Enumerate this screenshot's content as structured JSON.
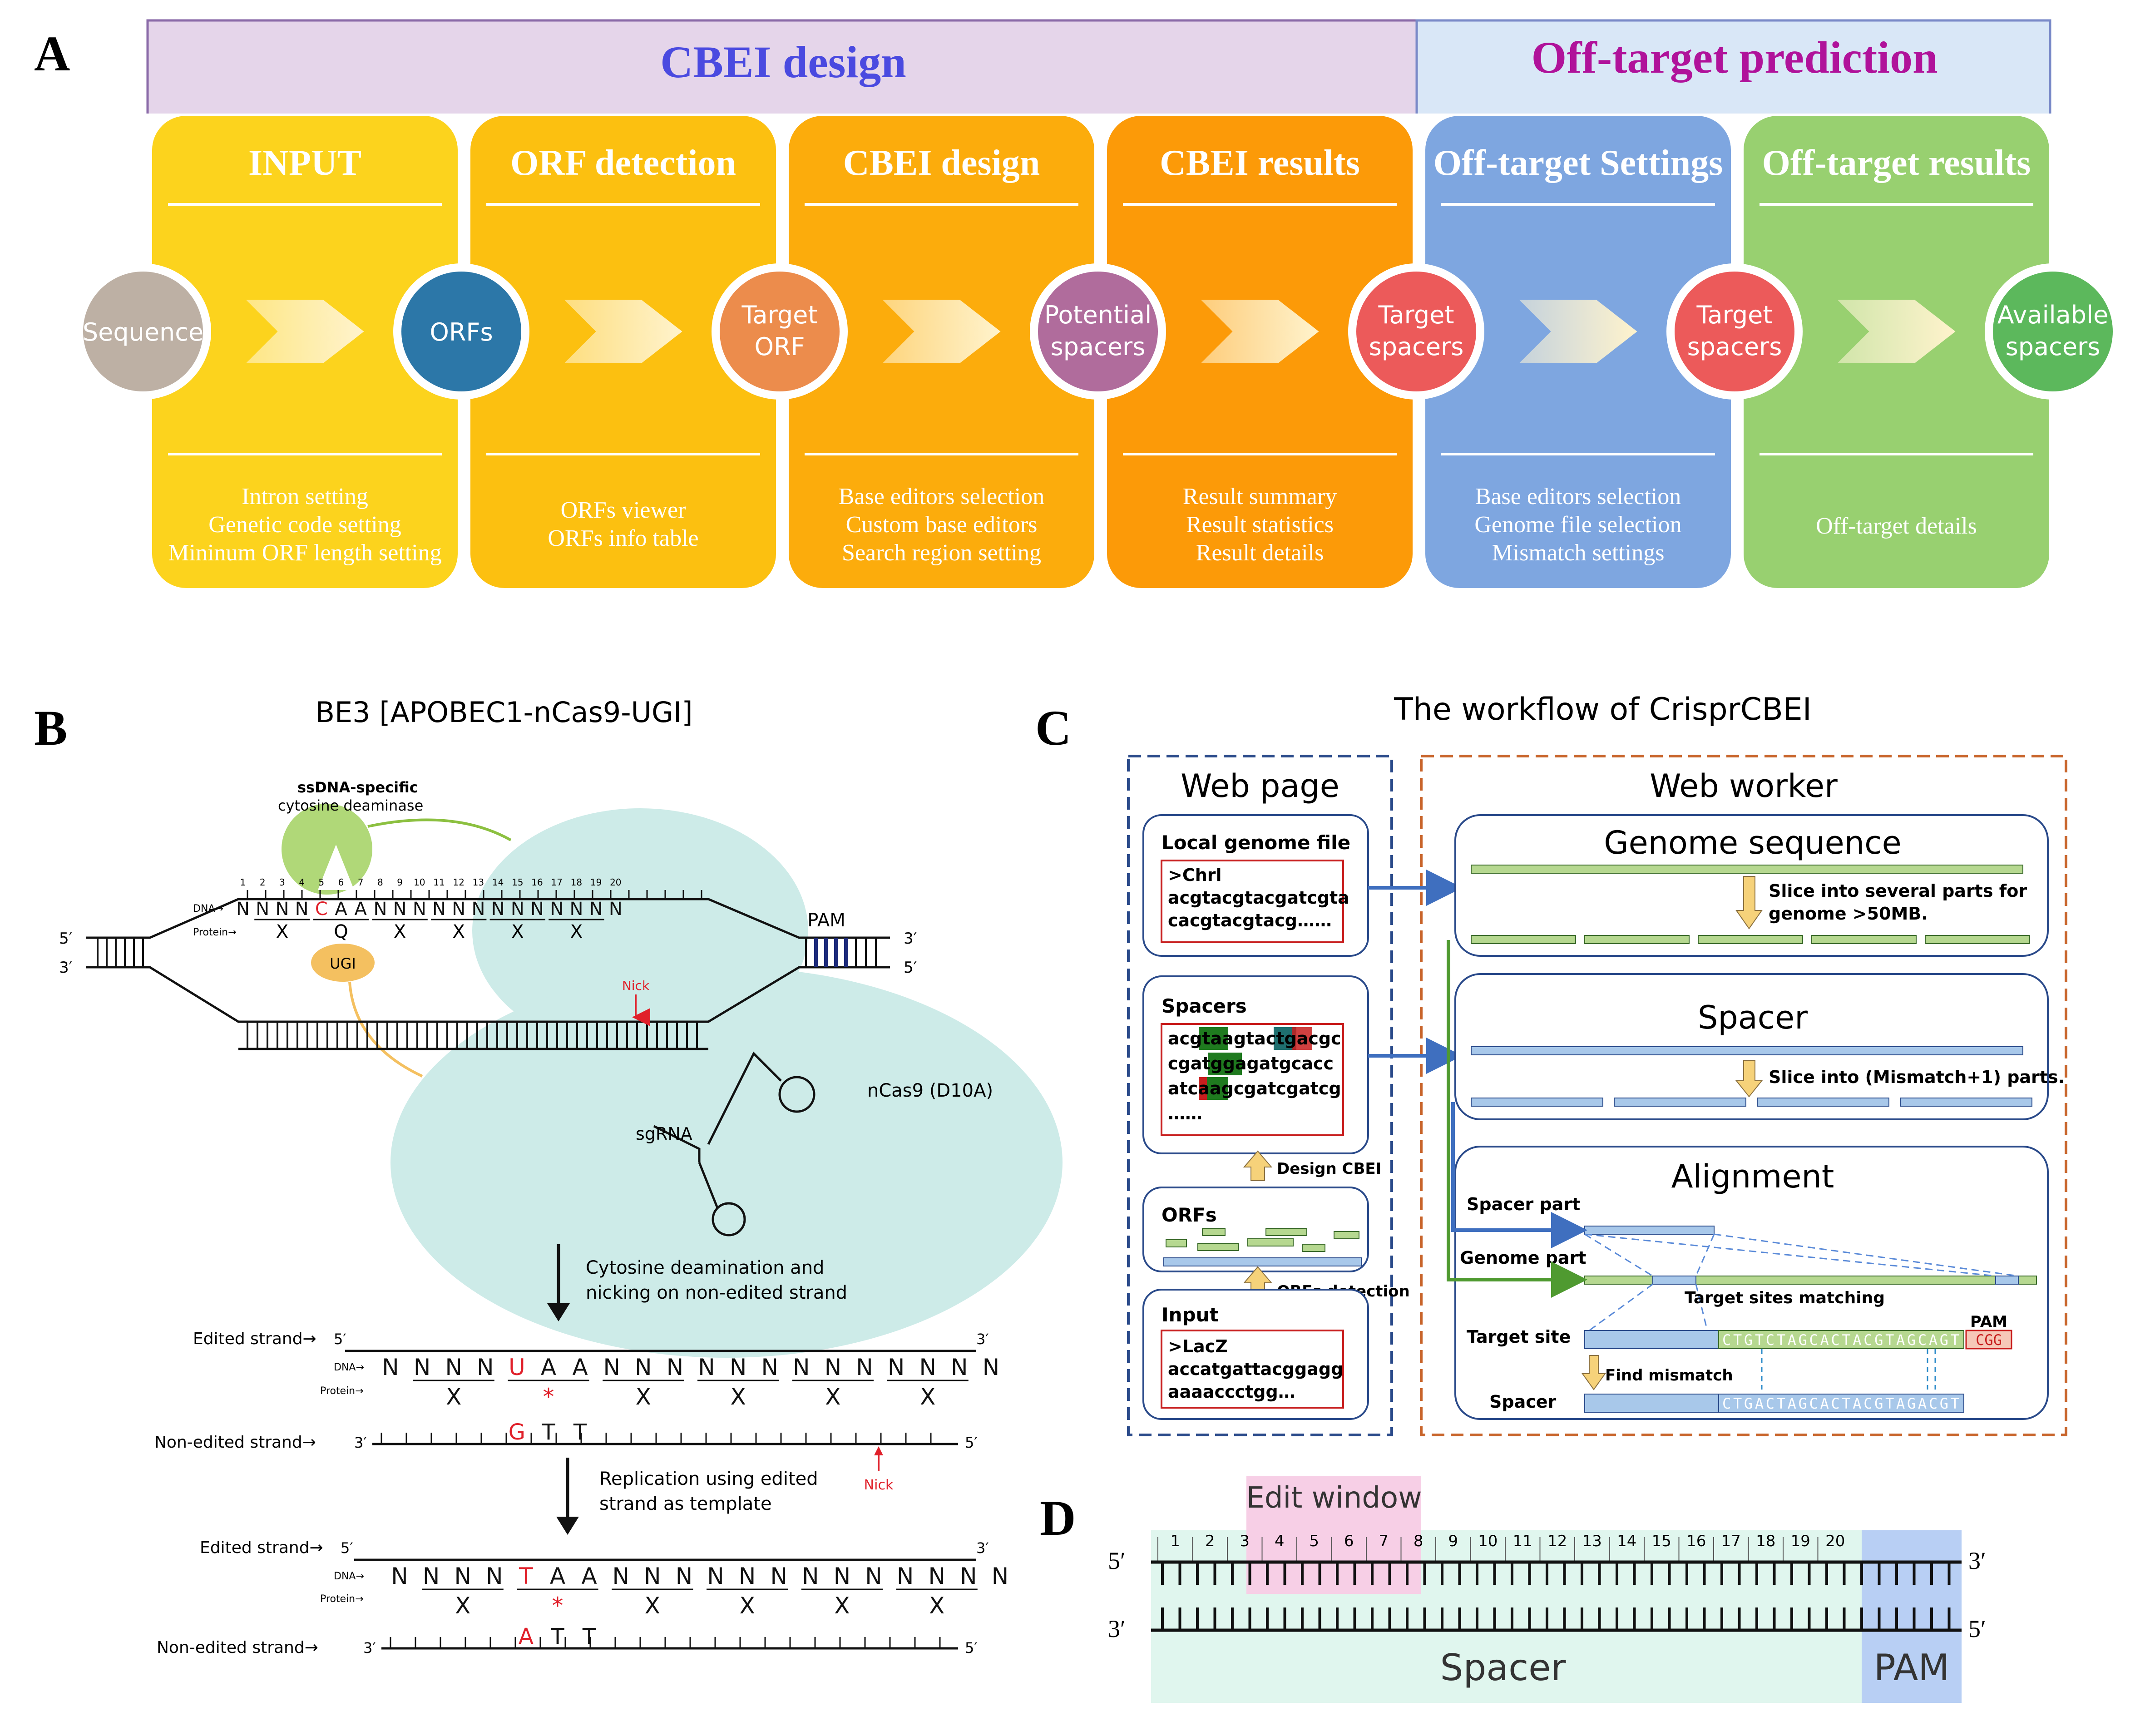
{
  "panel_a": {
    "letter": "A",
    "header_cbei": "CBEI design",
    "header_offtarget": "Off-target prediction",
    "colors": {
      "cbei_header_bg": "#e5d5ea",
      "off_header_bg": "#d9e7f7",
      "cbei_header_text": "#4a4ae0",
      "off_header_text": "#b0129a"
    },
    "columns": [
      {
        "title": "INPUT",
        "color": "#fcd31d",
        "lines": [
          "Intron setting",
          "Genetic code setting",
          "Mininum ORF length setting"
        ]
      },
      {
        "title": "ORF detection",
        "color": "#fcc010",
        "lines": [
          "ORFs viewer",
          "ORFs info table"
        ]
      },
      {
        "title": "CBEI design",
        "color": "#fcac0c",
        "lines": [
          "Base editors selection",
          "Custom base editors",
          "Search region setting"
        ]
      },
      {
        "title": "CBEI results",
        "color": "#fc9a08",
        "lines": [
          "Result summary",
          "Result statistics",
          "Result details"
        ]
      },
      {
        "title": "Off-target Settings",
        "color": "#7ea6e0",
        "lines": [
          "Base editors selection",
          "Genome file selection",
          "Mismatch settings"
        ]
      },
      {
        "title": "Off-target results",
        "color": "#98d070",
        "lines": [
          "Off-target details"
        ]
      }
    ],
    "nodes": [
      {
        "lines": [
          "Sequence"
        ],
        "color": "#bdb0a4"
      },
      {
        "lines": [
          "ORFs"
        ],
        "color": "#2c77a8"
      },
      {
        "lines": [
          "Target",
          "ORF"
        ],
        "color": "#ec8c4c"
      },
      {
        "lines": [
          "Potential",
          "spacers"
        ],
        "color": "#b06c9c"
      },
      {
        "lines": [
          "Target",
          "spacers"
        ],
        "color": "#ec5a5a"
      },
      {
        "lines": [
          "Target",
          "spacers"
        ],
        "color": "#ec5a5a"
      },
      {
        "lines": [
          "Available",
          "spacers"
        ],
        "color": "#5cb85c"
      }
    ]
  },
  "panel_b": {
    "letter": "B",
    "title": "BE3 [APOBEC1-nCas9-UGI]",
    "deaminase_bold": "ssDNA-specific",
    "deaminase_label": "cytosine deaminase",
    "ugi": "UGI",
    "nick": "Nick",
    "pam": "PAM",
    "ncas9": "nCas9 (D10A)",
    "sgrna": "sgRNA",
    "dna_prefix": "DNA→",
    "protein_prefix": "Protein→",
    "prime5": "5′",
    "prime3": "3′",
    "positions": [
      "1",
      "2",
      "3",
      "4",
      "5",
      "6",
      "7",
      "8",
      "9",
      "10",
      "11",
      "12",
      "13",
      "14",
      "15",
      "16",
      "17",
      "18",
      "19",
      "20"
    ],
    "dna_top": [
      "N",
      "N",
      "N",
      "N",
      "C",
      "A",
      "A",
      "N",
      "N",
      "N",
      "N",
      "N",
      "N",
      "N",
      "N",
      "N",
      "N",
      "N",
      "N",
      "N"
    ],
    "codons_top": [
      "X",
      "Q",
      "X",
      "X",
      "X",
      "X"
    ],
    "step1_line1": "Cytosine deamination and",
    "step1_line2": "nicking on non-edited strand",
    "edited_strand": "Edited strand→",
    "non_edited_strand": "Non-edited strand→",
    "dna_mid": [
      "N",
      "N",
      "N",
      "N",
      "U",
      "A",
      "A",
      "N",
      "N",
      "N",
      "N",
      "N",
      "N",
      "N",
      "N",
      "N",
      "N",
      "N",
      "N",
      "N"
    ],
    "codons_mid": [
      "X",
      "*",
      "X",
      "X",
      "X",
      "X"
    ],
    "mid_bottom": [
      "G",
      "T",
      "T"
    ],
    "step2_line1": "Replication using edited",
    "step2_line2": "strand as template",
    "dna_bot": [
      "N",
      "N",
      "N",
      "N",
      "T",
      "A",
      "A",
      "N",
      "N",
      "N",
      "N",
      "N",
      "N",
      "N",
      "N",
      "N",
      "N",
      "N",
      "N",
      "N"
    ],
    "codons_bot": [
      "X",
      "*",
      "X",
      "X",
      "X",
      "X"
    ],
    "bot_bottom": [
      "A",
      "T",
      "T"
    ],
    "colors": {
      "red": "#e0202a",
      "cyan": "#cdebe8",
      "green": "#b0d878",
      "orange": "#f4c060",
      "navy": "#1c2a7a"
    }
  },
  "panel_c": {
    "letter": "C",
    "title": "The workflow of CrisprCBEI",
    "web_page": "Web page",
    "web_worker": "Web worker",
    "local_genome": {
      "title": "Local genome file",
      "lines": [
        ">Chrl",
        "acgtacgtacgatcgta",
        "cacgtacgtacg……"
      ]
    },
    "spacers": {
      "title": "Spacers",
      "lines": [
        "acgtaagtactgacgc",
        "cgatggagatgcacc",
        "atcaagcgatcgatcg",
        "……"
      ]
    },
    "orfs": "ORFs",
    "design_cbei": "Design CBEI",
    "orfs_detection": "ORFs detection",
    "input": {
      "title": "Input",
      "lines": [
        ">LacZ",
        "accatgattacggagg",
        "aaaaccctgg…"
      ]
    },
    "genome_sequence": "Genome sequence",
    "slice_genome_1": "Slice into several parts for",
    "slice_genome_2": "genome >50MB.",
    "spacer": "Spacer",
    "slice_spacer": "Slice into (Mismatch+1) parts.",
    "alignment": "Alignment",
    "spacer_part": "Spacer part",
    "genome_part": "Genome part",
    "target_matching": "Target sites matching",
    "pam": "PAM",
    "target_site": "Target site",
    "target_seq": "CTGTCTAGCACTACGTAGCAGT",
    "pam_seq": "CGG",
    "find_mismatch": "Find mismatch",
    "spacer_label": "Spacer",
    "spacer_seq": "CTGACTAGCACTACGTAGACGT",
    "colors": {
      "blue_dash": "#2a4a8a",
      "orange_dash": "#c8642a",
      "green_bar": "#b6d890",
      "blue_bar": "#a8c8ea",
      "red": "#c81e1e",
      "dark_green": "#1f7a1f",
      "teal": "#1f6f6f"
    }
  },
  "panel_d": {
    "letter": "D",
    "edit_window": "Edit window",
    "spacer": "Spacer",
    "pam": "PAM",
    "prime5": "5′",
    "prime3": "3′",
    "positions": [
      "1",
      "2",
      "3",
      "4",
      "5",
      "6",
      "7",
      "8",
      "9",
      "10",
      "11",
      "12",
      "13",
      "14",
      "15",
      "16",
      "17",
      "18",
      "19",
      "20"
    ],
    "colors": {
      "spacer_bg": "#e0f6ee",
      "pam_bg": "#b8cff4",
      "window_bg": "#f7cfe6"
    }
  }
}
